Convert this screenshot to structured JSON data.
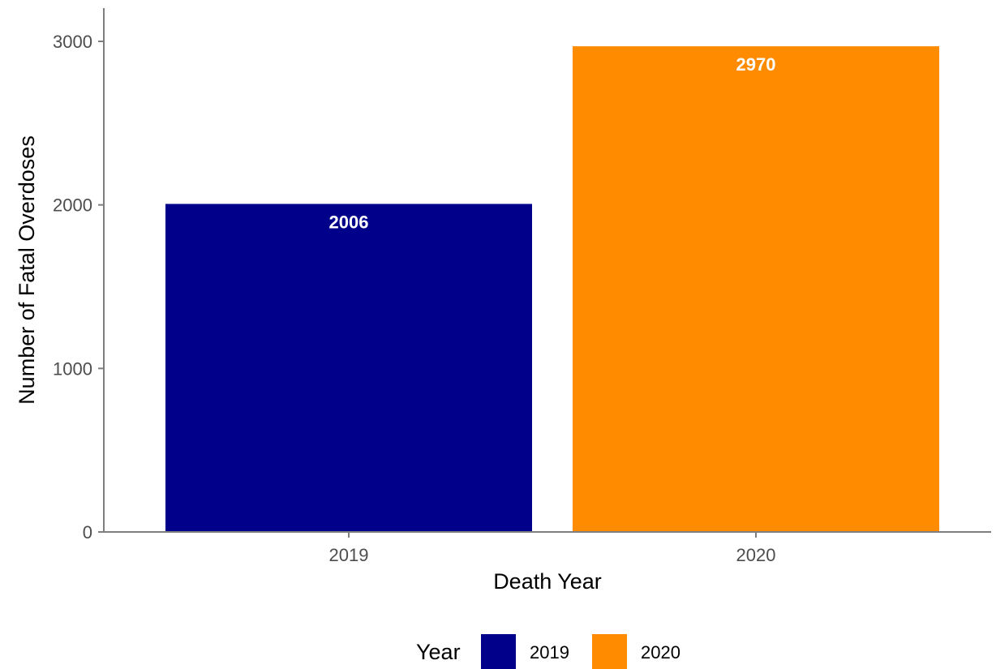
{
  "chart_data": {
    "type": "bar",
    "title": "",
    "xlabel": "Death Year",
    "ylabel": "Number of Fatal Overdoses",
    "categories": [
      "2019",
      "2020"
    ],
    "values": [
      2006,
      2970
    ],
    "data_labels": [
      "2006",
      "2970"
    ],
    "colors": [
      "#00008b",
      "#ff8c00"
    ],
    "ylim": [
      0,
      3200
    ],
    "yticks": [
      0,
      1000,
      2000,
      3000
    ],
    "ytick_labels": [
      "0",
      "1000",
      "2000",
      "3000"
    ],
    "grid": false,
    "legend": {
      "title": "Year",
      "placement": "bottom",
      "entries": [
        {
          "label": "2019",
          "color": "#00008b"
        },
        {
          "label": "2020",
          "color": "#ff8c00"
        }
      ]
    }
  }
}
